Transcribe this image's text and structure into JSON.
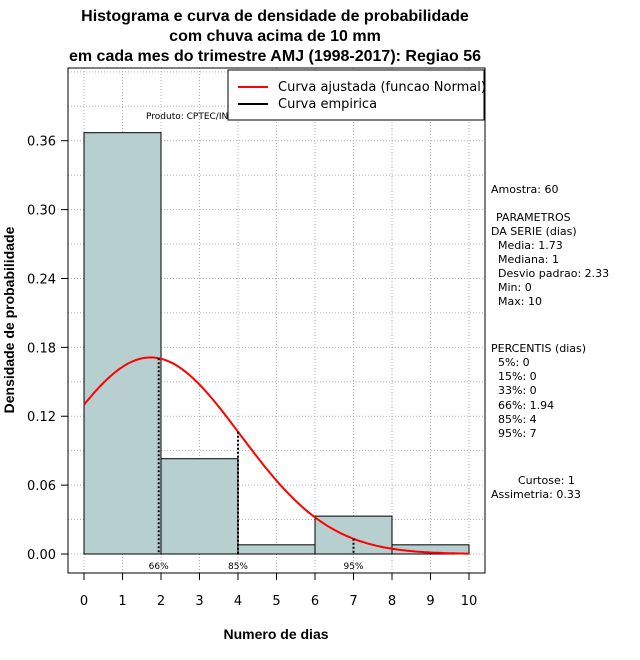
{
  "chart_data": {
    "type": "bar",
    "title_lines": [
      "Histograma e curva de densidade de probabilidade",
      "com chuva acima de 10 mm",
      "em cada mes do trimestre AMJ (1998-2017): Regiao 56"
    ],
    "xlabel": "Numero de dias",
    "ylabel": "Densidade de probabilidade",
    "xlim": [
      0,
      10
    ],
    "ylim": [
      0,
      0.36
    ],
    "x_ticks": [
      "0",
      "1",
      "2",
      "3",
      "4",
      "5",
      "6",
      "7",
      "8",
      "9",
      "10"
    ],
    "y_ticks": [
      "0.00",
      "0.06",
      "0.12",
      "0.18",
      "0.24",
      "0.30",
      "0.36"
    ],
    "bins": [
      {
        "start": 0,
        "end": 2,
        "density": 0.367
      },
      {
        "start": 2,
        "end": 4,
        "density": 0.083
      },
      {
        "start": 4,
        "end": 6,
        "density": 0.008
      },
      {
        "start": 6,
        "end": 8,
        "density": 0.033
      },
      {
        "start": 8,
        "end": 10,
        "density": 0.008
      }
    ],
    "normal_fit": {
      "mean": 1.73,
      "sd": 2.33
    },
    "percentile_markers": [
      {
        "label": "66%",
        "x": 1.94
      },
      {
        "label": "85%",
        "x": 4
      },
      {
        "label": "95%",
        "x": 7
      }
    ],
    "legend": [
      {
        "label": "Curva ajustada (funcao Normal)",
        "color": "#ff0000"
      },
      {
        "label": "Curva empirica",
        "color": "#000000"
      }
    ],
    "product_label": "Produto: CPTEC/INPE",
    "bar_color": "#b7cfcf",
    "curve_color": "#ff0000"
  },
  "side_panel": {
    "amostra": "Amostra: 60",
    "param_header_1": "PARAMETROS",
    "param_header_2": "DA SERIE (dias)",
    "media": "Media: 1.73",
    "mediana": "Mediana: 1",
    "desvio": "Desvio padrao: 2.33",
    "min": "Min: 0",
    "max": "Max: 10",
    "percentis_header": "PERCENTIS (dias)",
    "p5": "5%: 0",
    "p15": "15%: 0",
    "p33": "33%: 0",
    "p66": "66%: 1.94",
    "p85": "85%: 4",
    "p95": "95%: 7",
    "curtose": "Curtose: 1",
    "assimetria": "Assimetria: 0.33"
  }
}
